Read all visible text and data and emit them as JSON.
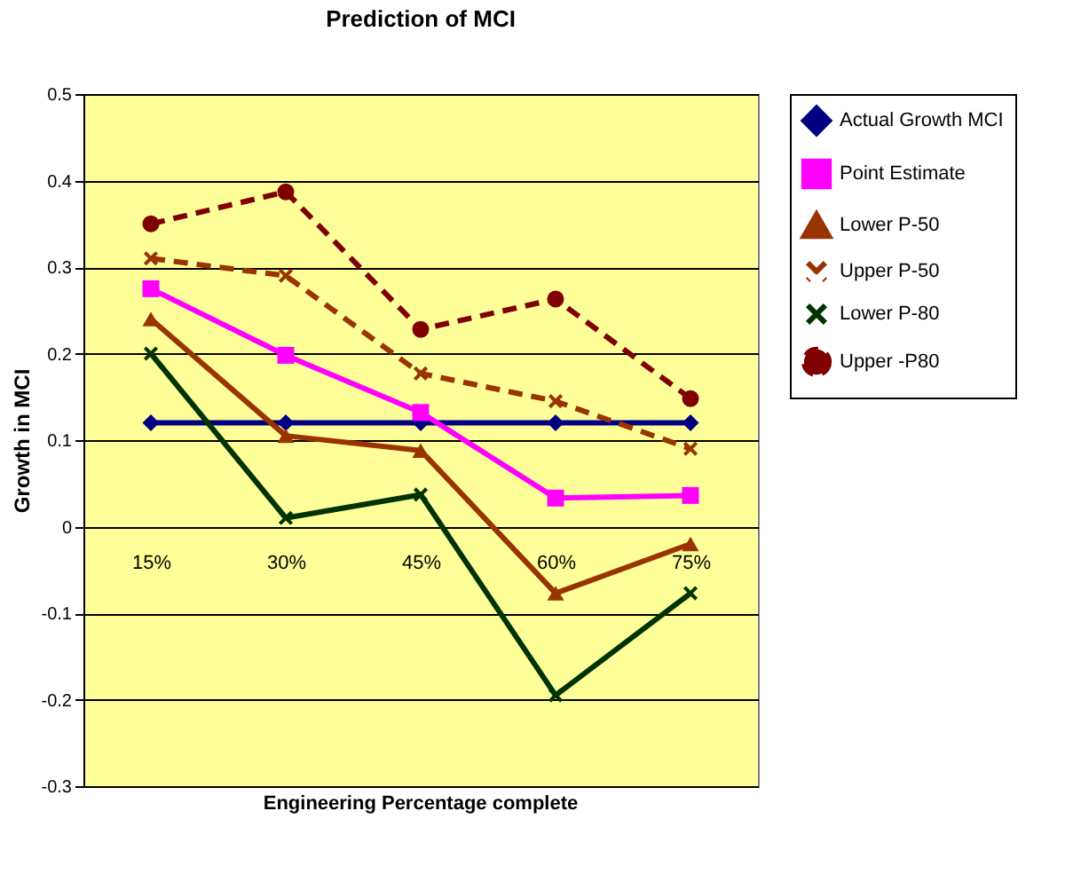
{
  "chart_data": {
    "type": "line",
    "title": "Prediction of MCI",
    "xlabel": "Engineering Percentage complete",
    "ylabel": "Growth in MCI",
    "categories": [
      "15%",
      "30%",
      "45%",
      "60%",
      "75%"
    ],
    "ylim": [
      -0.3,
      0.5
    ],
    "yticks": [
      -0.3,
      -0.2,
      -0.1,
      0,
      0.1,
      0.2,
      0.3,
      0.4,
      0.5
    ],
    "grid": "y",
    "legend": "right",
    "series": [
      {
        "name": "Actual Growth MCI",
        "color": "#000080",
        "marker": "diamond",
        "line_style": "solid",
        "values": [
          0.12,
          0.12,
          0.12,
          0.12,
          0.12
        ]
      },
      {
        "name": "Point Estimate",
        "color": "#ff00ff",
        "marker": "square",
        "line_style": "solid",
        "values": [
          0.275,
          0.198,
          0.132,
          0.033,
          0.036
        ]
      },
      {
        "name": "Lower P-50",
        "color": "#993300",
        "marker": "triangle",
        "line_style": "solid",
        "values": [
          0.24,
          0.105,
          0.088,
          -0.077,
          -0.02
        ]
      },
      {
        "name": "Upper P-50",
        "color": "#993300",
        "marker": "cross",
        "line_style": "dashed",
        "values": [
          0.31,
          0.29,
          0.177,
          0.145,
          0.09
        ]
      },
      {
        "name": "Lower P-80",
        "color": "#003300",
        "marker": "cross",
        "line_style": "solid",
        "values": [
          0.2,
          0.01,
          0.037,
          -0.195,
          -0.077
        ]
      },
      {
        "name": "Upper -P80",
        "color": "#800000",
        "marker": "circle",
        "line_style": "dashed",
        "values": [
          0.35,
          0.387,
          0.228,
          0.263,
          0.148
        ]
      }
    ]
  }
}
